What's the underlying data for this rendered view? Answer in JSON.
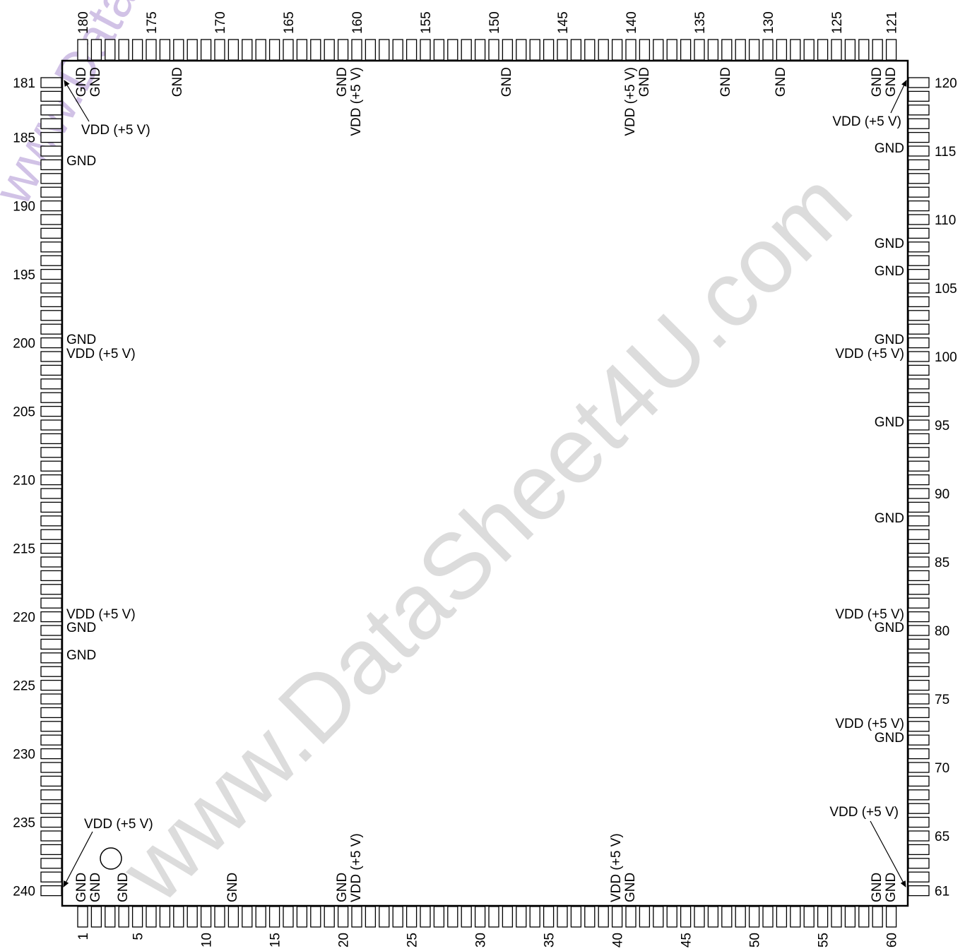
{
  "package": {
    "pin_count": 240,
    "pins_per_side": 60,
    "bottom_labels": [
      "1",
      "5",
      "10",
      "15",
      "20",
      "25",
      "30",
      "35",
      "40",
      "45",
      "50",
      "55",
      "60"
    ],
    "right_labels": [
      "61",
      "65",
      "70",
      "75",
      "80",
      "85",
      "90",
      "95",
      "100",
      "105",
      "110",
      "115",
      "120"
    ],
    "top_labels": [
      "121",
      "125",
      "130",
      "135",
      "140",
      "145",
      "150",
      "155",
      "160",
      "165",
      "170",
      "175",
      "180"
    ],
    "left_labels": [
      "181",
      "185",
      "190",
      "195",
      "200",
      "205",
      "210",
      "215",
      "220",
      "225",
      "230",
      "235",
      "240"
    ]
  },
  "signals": {
    "gnd": "GND",
    "vdd": "VDD (+5 V)",
    "top_vdd_a": "VDD (+5 V)",
    "top_vdd_b": "VDD (+5 V)",
    "bottom_vdd_a": "VDD (+5 V)",
    "bottom_vdd_b": "VDD (+5 V)"
  },
  "watermarks": {
    "main": "www.DataSheet4U.com",
    "corner": "www.DataShe"
  },
  "colors": {
    "outline": "#000000",
    "watermark": "#dcdcdc",
    "watermark_corner": "#c9b7e2"
  }
}
